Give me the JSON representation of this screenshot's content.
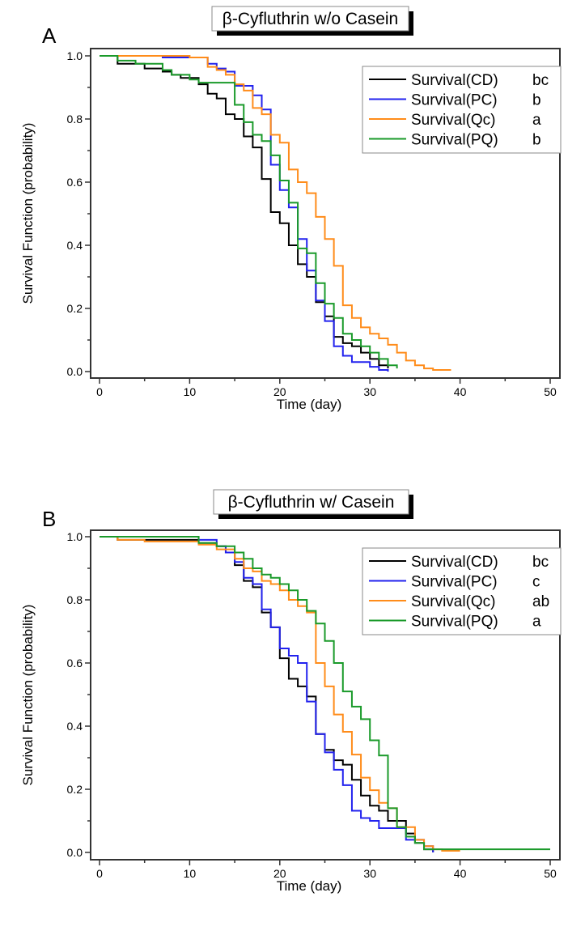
{
  "colors": {
    "CD": "#000000",
    "PC": "#2222ee",
    "QC": "#ff8c1a",
    "PQ": "#1a9a2a"
  },
  "chart_data": [
    {
      "panel_label": "A",
      "type": "line",
      "step": true,
      "title": "β-Cyfluthrin w/o Casein",
      "xlabel": "Time (day)",
      "ylabel": "Survival Function (probability)",
      "xlim": [
        0,
        50
      ],
      "ylim": [
        0,
        1.0
      ],
      "xticks": [
        "0",
        "10",
        "20",
        "30",
        "40",
        "50"
      ],
      "yticks": [
        "0.0",
        "0.2",
        "0.4",
        "0.6",
        "0.8",
        "1.0"
      ],
      "legend_position": "top-right",
      "series": [
        {
          "key": "CD",
          "name": "Survival(CD)",
          "group": "bc",
          "points": [
            [
              0,
              1
            ],
            [
              2,
              0.975
            ],
            [
              5,
              0.96
            ],
            [
              7,
              0.95
            ],
            [
              8,
              0.94
            ],
            [
              9,
              0.93
            ],
            [
              11,
              0.91
            ],
            [
              12,
              0.88
            ],
            [
              13,
              0.865
            ],
            [
              14,
              0.815
            ],
            [
              15,
              0.8
            ],
            [
              16,
              0.745
            ],
            [
              17,
              0.71
            ],
            [
              18,
              0.61
            ],
            [
              19,
              0.505
            ],
            [
              20,
              0.47
            ],
            [
              21,
              0.4
            ],
            [
              22,
              0.34
            ],
            [
              23,
              0.3
            ],
            [
              24,
              0.22
            ],
            [
              25,
              0.175
            ],
            [
              26,
              0.11
            ],
            [
              27,
              0.09
            ],
            [
              28,
              0.08
            ],
            [
              29,
              0.06
            ],
            [
              30,
              0.04
            ],
            [
              31,
              0.02
            ],
            [
              32,
              0.01
            ]
          ]
        },
        {
          "key": "PC",
          "name": "Survival(PC)",
          "group": "b",
          "points": [
            [
              0,
              1
            ],
            [
              7,
              0.995
            ],
            [
              12,
              0.975
            ],
            [
              13,
              0.96
            ],
            [
              14,
              0.95
            ],
            [
              15,
              0.905
            ],
            [
              17,
              0.875
            ],
            [
              18,
              0.83
            ],
            [
              19,
              0.655
            ],
            [
              20,
              0.575
            ],
            [
              21,
              0.52
            ],
            [
              22,
              0.42
            ],
            [
              23,
              0.32
            ],
            [
              24,
              0.225
            ],
            [
              25,
              0.16
            ],
            [
              26,
              0.08
            ],
            [
              27,
              0.05
            ],
            [
              28,
              0.03
            ],
            [
              30,
              0.015
            ],
            [
              31,
              0.005
            ],
            [
              32,
              0
            ]
          ]
        },
        {
          "key": "QC",
          "name": "Survival(Qc)",
          "group": "a",
          "points": [
            [
              0,
              1
            ],
            [
              10,
              0.995
            ],
            [
              12,
              0.965
            ],
            [
              13,
              0.955
            ],
            [
              14,
              0.94
            ],
            [
              15,
              0.91
            ],
            [
              16,
              0.89
            ],
            [
              17,
              0.835
            ],
            [
              18,
              0.815
            ],
            [
              19,
              0.75
            ],
            [
              20,
              0.725
            ],
            [
              21,
              0.64
            ],
            [
              22,
              0.6
            ],
            [
              23,
              0.565
            ],
            [
              24,
              0.49
            ],
            [
              25,
              0.42
            ],
            [
              26,
              0.335
            ],
            [
              27,
              0.21
            ],
            [
              28,
              0.17
            ],
            [
              29,
              0.14
            ],
            [
              30,
              0.12
            ],
            [
              31,
              0.105
            ],
            [
              32,
              0.085
            ],
            [
              33,
              0.06
            ],
            [
              34,
              0.035
            ],
            [
              35,
              0.02
            ],
            [
              36,
              0.01
            ],
            [
              37,
              0.005
            ],
            [
              39,
              0.005
            ]
          ]
        },
        {
          "key": "PQ",
          "name": "Survival(PQ)",
          "group": "b",
          "points": [
            [
              0,
              1
            ],
            [
              2,
              0.985
            ],
            [
              4,
              0.975
            ],
            [
              7,
              0.955
            ],
            [
              8,
              0.94
            ],
            [
              10,
              0.925
            ],
            [
              11,
              0.915
            ],
            [
              15,
              0.845
            ],
            [
              16,
              0.79
            ],
            [
              17,
              0.75
            ],
            [
              18,
              0.73
            ],
            [
              19,
              0.685
            ],
            [
              20,
              0.605
            ],
            [
              21,
              0.535
            ],
            [
              22,
              0.39
            ],
            [
              23,
              0.375
            ],
            [
              24,
              0.28
            ],
            [
              25,
              0.215
            ],
            [
              26,
              0.17
            ],
            [
              27,
              0.12
            ],
            [
              28,
              0.1
            ],
            [
              29,
              0.08
            ],
            [
              30,
              0.06
            ],
            [
              31,
              0.04
            ],
            [
              32,
              0.02
            ],
            [
              33,
              0.01
            ]
          ]
        }
      ]
    },
    {
      "panel_label": "B",
      "type": "line",
      "step": true,
      "title": "β-Cyfluthrin w/ Casein",
      "xlabel": "Time (day)",
      "ylabel": "Survival Function (probability)",
      "xlim": [
        0,
        50
      ],
      "ylim": [
        0,
        1.0
      ],
      "xticks": [
        "0",
        "10",
        "20",
        "30",
        "40",
        "50"
      ],
      "yticks": [
        "0.0",
        "0.2",
        "0.4",
        "0.6",
        "0.8",
        "1.0"
      ],
      "legend_position": "top-right",
      "series": [
        {
          "key": "CD",
          "name": "Survival(CD)",
          "group": "bc",
          "points": [
            [
              0,
              1
            ],
            [
              2,
              0.99
            ],
            [
              11,
              0.98
            ],
            [
              13,
              0.97
            ],
            [
              14,
              0.95
            ],
            [
              15,
              0.91
            ],
            [
              16,
              0.86
            ],
            [
              17,
              0.84
            ],
            [
              18,
              0.76
            ],
            [
              19,
              0.713
            ],
            [
              20,
              0.615
            ],
            [
              21,
              0.55
            ],
            [
              22,
              0.526
            ],
            [
              23,
              0.494
            ],
            [
              24,
              0.375
            ],
            [
              25,
              0.325
            ],
            [
              26,
              0.292
            ],
            [
              27,
              0.278
            ],
            [
              28,
              0.23
            ],
            [
              29,
              0.18
            ],
            [
              30,
              0.148
            ],
            [
              31,
              0.132
            ],
            [
              32,
              0.1
            ],
            [
              34,
              0.06
            ],
            [
              35,
              0.03
            ],
            [
              36,
              0.01
            ],
            [
              37,
              0
            ]
          ]
        },
        {
          "key": "PC",
          "name": "Survival(PC)",
          "group": "c",
          "points": [
            [
              0,
              1
            ],
            [
              11,
              0.99
            ],
            [
              13,
              0.97
            ],
            [
              14,
              0.95
            ],
            [
              15,
              0.92
            ],
            [
              16,
              0.87
            ],
            [
              17,
              0.85
            ],
            [
              18,
              0.77
            ],
            [
              19,
              0.713
            ],
            [
              20,
              0.646
            ],
            [
              21,
              0.623
            ],
            [
              22,
              0.6
            ],
            [
              23,
              0.478
            ],
            [
              24,
              0.375
            ],
            [
              25,
              0.317
            ],
            [
              26,
              0.262
            ],
            [
              27,
              0.213
            ],
            [
              28,
              0.132
            ],
            [
              29,
              0.109
            ],
            [
              30,
              0.1
            ],
            [
              31,
              0.077
            ],
            [
              34,
              0.04
            ],
            [
              36,
              0.02
            ],
            [
              37,
              0
            ]
          ]
        },
        {
          "key": "QC",
          "name": "Survival(Qc)",
          "group": "ab",
          "points": [
            [
              0,
              1
            ],
            [
              2,
              0.99
            ],
            [
              5,
              0.985
            ],
            [
              11,
              0.975
            ],
            [
              13,
              0.96
            ],
            [
              15,
              0.93
            ],
            [
              16,
              0.9
            ],
            [
              17,
              0.89
            ],
            [
              18,
              0.86
            ],
            [
              19,
              0.85
            ],
            [
              20,
              0.83
            ],
            [
              21,
              0.8
            ],
            [
              22,
              0.78
            ],
            [
              23,
              0.76
            ],
            [
              24,
              0.6
            ],
            [
              25,
              0.526
            ],
            [
              26,
              0.437
            ],
            [
              27,
              0.382
            ],
            [
              28,
              0.31
            ],
            [
              29,
              0.237
            ],
            [
              30,
              0.197
            ],
            [
              31,
              0.157
            ],
            [
              32,
              0.14
            ],
            [
              33,
              0.08
            ],
            [
              35,
              0.04
            ],
            [
              36,
              0.02
            ],
            [
              37,
              0.01
            ],
            [
              38,
              0.005
            ],
            [
              40,
              0.005
            ]
          ]
        },
        {
          "key": "PQ",
          "name": "Survival(PQ)",
          "group": "a",
          "points": [
            [
              0,
              1
            ],
            [
              11,
              0.98
            ],
            [
              13,
              0.97
            ],
            [
              15,
              0.95
            ],
            [
              16,
              0.93
            ],
            [
              17,
              0.9
            ],
            [
              18,
              0.88
            ],
            [
              19,
              0.87
            ],
            [
              20,
              0.85
            ],
            [
              21,
              0.83
            ],
            [
              22,
              0.8
            ],
            [
              23,
              0.765
            ],
            [
              24,
              0.725
            ],
            [
              25,
              0.67
            ],
            [
              26,
              0.6
            ],
            [
              27,
              0.51
            ],
            [
              28,
              0.462
            ],
            [
              29,
              0.422
            ],
            [
              30,
              0.355
            ],
            [
              31,
              0.307
            ],
            [
              32,
              0.14
            ],
            [
              33,
              0.08
            ],
            [
              34,
              0.05
            ],
            [
              35,
              0.03
            ],
            [
              36,
              0.01
            ],
            [
              50,
              0.01
            ]
          ]
        }
      ]
    }
  ]
}
